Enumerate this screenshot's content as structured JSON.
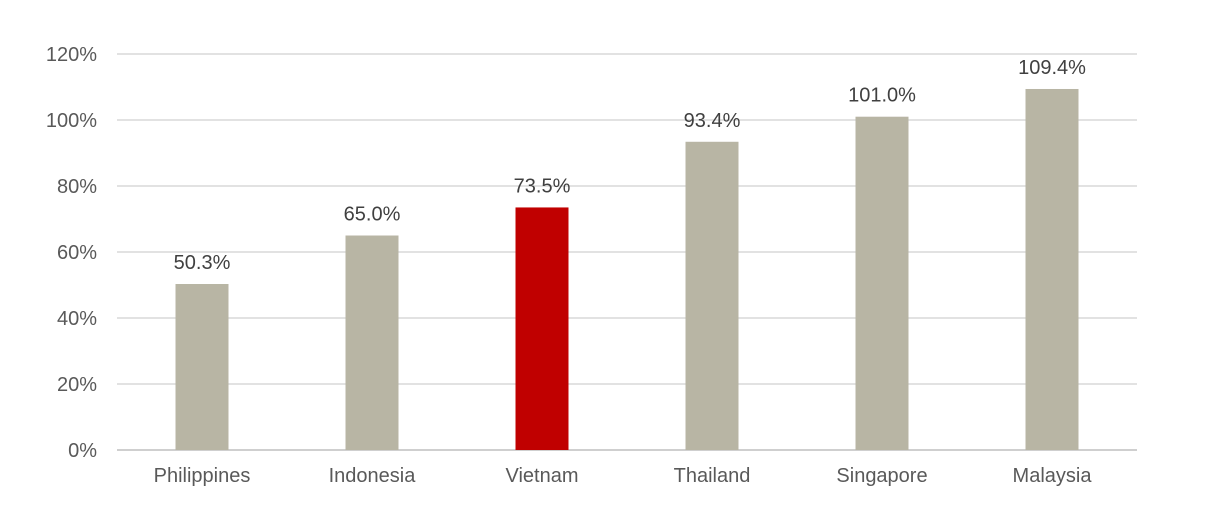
{
  "chart_data": {
    "type": "bar",
    "categories": [
      "Philippines",
      "Indonesia",
      "Vietnam",
      "Thailand",
      "Singapore",
      "Malaysia"
    ],
    "values": [
      50.3,
      65.0,
      73.5,
      93.4,
      101.0,
      109.4
    ],
    "value_labels": [
      "50.3%",
      "65.0%",
      "73.5%",
      "93.4%",
      "101.0%",
      "109.4%"
    ],
    "y_ticks": [
      0,
      20,
      40,
      60,
      80,
      100,
      120
    ],
    "y_tick_labels": [
      "0%",
      "20%",
      "40%",
      "60%",
      "80%",
      "100%",
      "120%"
    ],
    "ylim": [
      0,
      120
    ],
    "grid": true,
    "legend": "none",
    "colors": {
      "default_bar": "#b8b5a4",
      "highlight_bar": "#c00000",
      "highlight_category": "Vietnam"
    }
  }
}
